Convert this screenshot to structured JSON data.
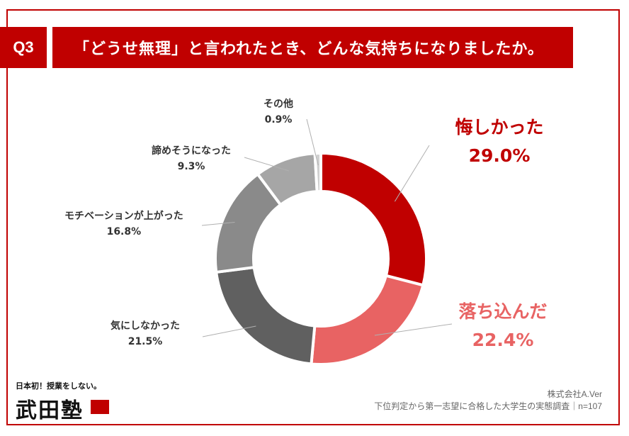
{
  "header": {
    "q_label": "Q3",
    "title": "「どうせ無理」と言われたとき、どんな気持ちになりましたか。"
  },
  "chart_data": {
    "type": "pie",
    "donut": true,
    "slices": [
      {
        "label": "悔しかった",
        "value": 29.0,
        "value_text": "29.0%",
        "color": "#c00000",
        "label_color": "#c00000"
      },
      {
        "label": "落ち込んだ",
        "value": 22.4,
        "value_text": "22.4%",
        "color": "#e86363",
        "label_color": "#e86363"
      },
      {
        "label": "気にしなかった",
        "value": 21.5,
        "value_text": "21.5%",
        "color": "#606060",
        "label_color": "#333333"
      },
      {
        "label": "モチベーションが上がった",
        "value": 16.8,
        "value_text": "16.8%",
        "color": "#8a8a8a",
        "label_color": "#333333"
      },
      {
        "label": "諦めそうになった",
        "value": 9.3,
        "value_text": "9.3%",
        "color": "#a6a6a6",
        "label_color": "#333333"
      },
      {
        "label": "その他",
        "value": 0.9,
        "value_text": "0.9%",
        "color": "#d0d0d0",
        "label_color": "#333333"
      }
    ]
  },
  "logo": {
    "tagline": "日本初！授業をしない。",
    "name": "武田塾",
    "stamp_text": ""
  },
  "footer": {
    "company": "株式会社A.Ver",
    "survey": "下位判定から第一志望に合格した大学生の実態調査｜n=107"
  }
}
